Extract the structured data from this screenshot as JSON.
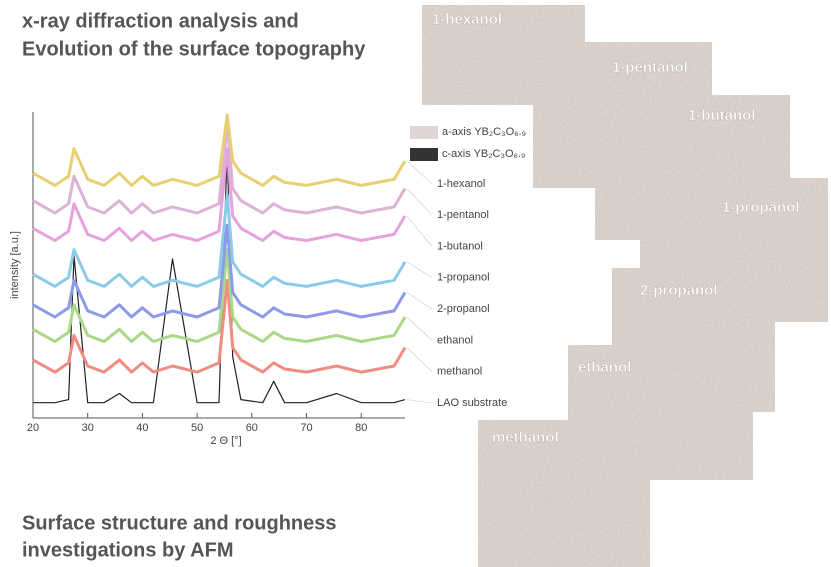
{
  "title": [
    "x-ray diffraction analysis and",
    "Evolution of the surface topography"
  ],
  "chart_data": {
    "type": "line",
    "xlabel": "2 Θ [°]",
    "ylabel": "intensity [a.u.]",
    "xlim": [
      20,
      88
    ],
    "xticks": [
      20,
      30,
      40,
      50,
      60,
      70,
      80
    ],
    "ylim": [
      0,
      100
    ],
    "legend": [
      {
        "name": "a-axis YB₂C₃O₆.₉",
        "color": "#e2d4d2"
      },
      {
        "name": "c-axis YB₂C₃O₆.₉",
        "color": "#333333"
      }
    ],
    "x": [
      20,
      24,
      26.5,
      27.5,
      30,
      33,
      35.8,
      38,
      40,
      42,
      45.5,
      50,
      54,
      55.5,
      56.5,
      58,
      62,
      64,
      66,
      70,
      75.5,
      80,
      86,
      88
    ],
    "series": [
      {
        "name": "LAO substrate",
        "color": "#222222",
        "values": [
          5,
          5,
          6,
          53,
          5,
          5,
          8,
          5,
          5,
          5,
          52,
          5,
          5,
          88,
          20,
          6,
          5,
          12,
          5,
          5,
          8,
          5,
          5,
          6
        ]
      },
      {
        "name": "methanol",
        "color": "#f08c80",
        "values": [
          19,
          15,
          18,
          27,
          17,
          15,
          19,
          15,
          18,
          15,
          17,
          15,
          18,
          45,
          23,
          19,
          15,
          18,
          16,
          15,
          17,
          15,
          17,
          23
        ]
      },
      {
        "name": "ethanol",
        "color": "#a8d888",
        "values": [
          29,
          25,
          28,
          37,
          27,
          25,
          29,
          25,
          28,
          25,
          27,
          25,
          28,
          55,
          33,
          29,
          25,
          28,
          26,
          25,
          27,
          25,
          27,
          33
        ]
      },
      {
        "name": "2-propanol",
        "color": "#8c9ae8",
        "values": [
          37,
          33,
          36,
          45,
          35,
          33,
          37,
          33,
          36,
          33,
          35,
          33,
          36,
          63,
          41,
          37,
          33,
          36,
          34,
          33,
          35,
          33,
          35,
          41
        ]
      },
      {
        "name": "1-propanol",
        "color": "#8ccbe8",
        "values": [
          47,
          43,
          46,
          55,
          45,
          43,
          47,
          43,
          46,
          43,
          45,
          43,
          46,
          73,
          51,
          47,
          43,
          46,
          44,
          43,
          45,
          43,
          45,
          51
        ]
      },
      {
        "name": "1-butanol",
        "color": "#e6a2e0",
        "values": [
          62,
          58,
          61,
          70,
          60,
          58,
          62,
          58,
          61,
          58,
          60,
          58,
          61,
          88,
          66,
          62,
          58,
          61,
          59,
          58,
          60,
          58,
          60,
          66
        ]
      },
      {
        "name": "1-pentanol",
        "color": "#dcb2d8",
        "values": [
          71,
          67,
          70,
          79,
          69,
          67,
          71,
          67,
          70,
          67,
          69,
          67,
          70,
          96,
          75,
          71,
          67,
          70,
          68,
          67,
          69,
          67,
          69,
          75
        ]
      },
      {
        "name": "1-hexanol",
        "color": "#e8d070",
        "values": [
          80,
          76,
          79,
          88,
          78,
          76,
          80,
          76,
          79,
          76,
          78,
          76,
          79,
          99,
          84,
          80,
          76,
          79,
          77,
          76,
          78,
          76,
          78,
          84
        ]
      }
    ]
  },
  "afm": {
    "images": [
      "1-hexanol",
      "1-pentanol",
      "1-butanol",
      "1-propanol",
      "2-propanol",
      "ethanol",
      "methanol"
    ],
    "caption": [
      "Surface structure and roughness",
      "investigations by AFM"
    ]
  }
}
